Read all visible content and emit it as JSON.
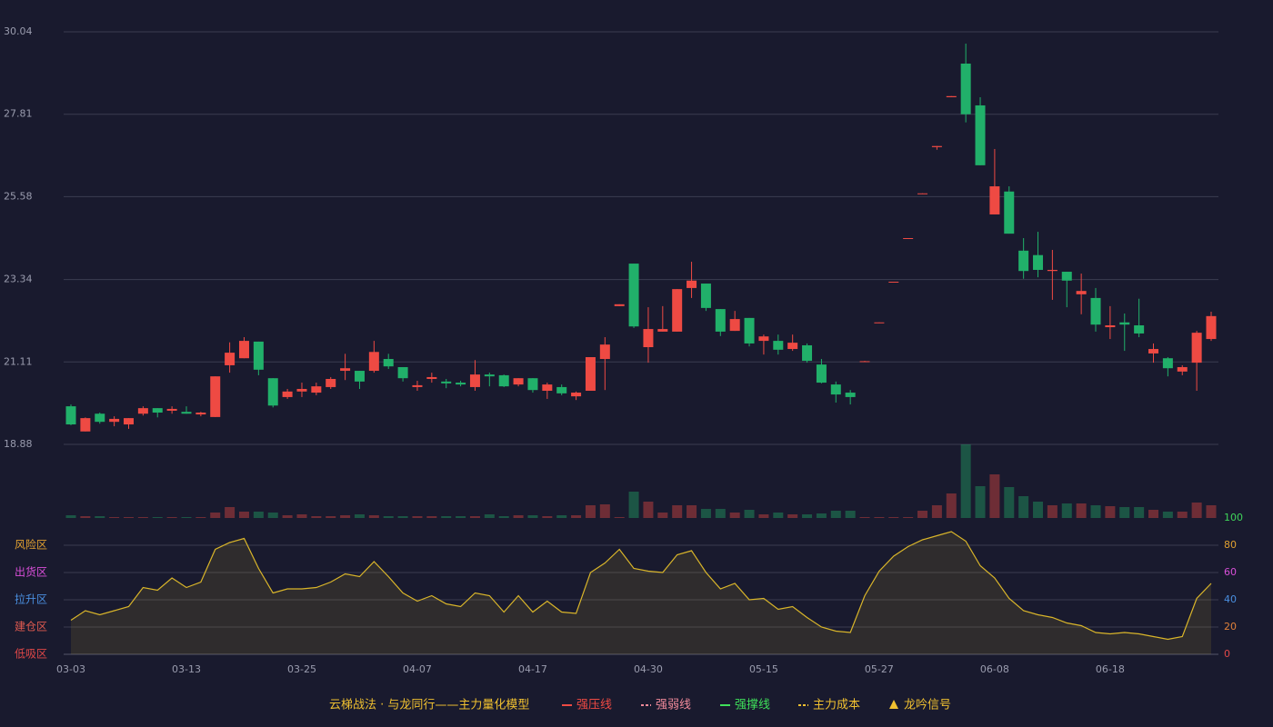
{
  "chart_data": {
    "type": "candlestick",
    "categories": [
      "03-03",
      null,
      null,
      null,
      null,
      null,
      null,
      null,
      "03-13",
      null,
      null,
      null,
      null,
      null,
      null,
      null,
      "03-25",
      null,
      null,
      null,
      null,
      null,
      null,
      null,
      "04-07",
      null,
      null,
      null,
      null,
      null,
      null,
      null,
      "04-17",
      null,
      null,
      null,
      null,
      null,
      null,
      null,
      "04-30",
      null,
      null,
      null,
      null,
      null,
      null,
      null,
      "05-15",
      null,
      null,
      null,
      null,
      null,
      null,
      null,
      "05-27",
      null,
      null,
      null,
      null,
      null,
      null,
      null,
      "06-08",
      null,
      null,
      null,
      null,
      null,
      null,
      null,
      "06-18",
      null,
      null,
      null,
      null,
      null,
      null,
      null
    ],
    "open": [
      19.91,
      19.23,
      19.71,
      19.49,
      19.42,
      19.71,
      19.86,
      19.79,
      19.76,
      19.69,
      19.62,
      21.02,
      21.21,
      21.66,
      20.67,
      20.16,
      20.31,
      20.28,
      20.43,
      20.87,
      20.87,
      20.87,
      21.19,
      20.97,
      20.43,
      20.65,
      20.58,
      20.55,
      20.43,
      20.77,
      20.75,
      20.5,
      20.67,
      20.33,
      20.43,
      20.18,
      20.33,
      21.19,
      22.62,
      23.77,
      21.51,
      21.93,
      21.93,
      23.11,
      23.23,
      22.54,
      21.95,
      22.3,
      21.68,
      21.68,
      21.46,
      21.56,
      21.04,
      20.5,
      20.28,
      21.11,
      22.16,
      23.26,
      24.44,
      25.65,
      26.92,
      28.27,
      29.18,
      28.05,
      25.1,
      25.72,
      24.12,
      24.0,
      23.57,
      23.55,
      22.94,
      22.84,
      22.05,
      22.18,
      22.1,
      21.34,
      21.21,
      20.85,
      21.09,
      21.73
    ],
    "high": [
      19.96,
      19.61,
      19.74,
      19.64,
      19.59,
      19.91,
      19.86,
      19.91,
      19.91,
      19.76,
      20.72,
      21.64,
      21.78,
      21.66,
      20.67,
      20.38,
      20.55,
      20.55,
      20.7,
      21.33,
      20.87,
      21.68,
      21.33,
      20.97,
      20.6,
      20.82,
      20.65,
      20.6,
      21.16,
      20.82,
      20.77,
      20.67,
      20.67,
      20.55,
      20.5,
      20.31,
      21.24,
      21.78,
      22.67,
      23.77,
      22.59,
      22.62,
      23.08,
      23.82,
      23.23,
      22.54,
      22.49,
      22.3,
      21.85,
      21.85,
      21.85,
      21.61,
      21.19,
      20.58,
      20.35,
      21.14,
      22.18,
      23.28,
      24.46,
      25.67,
      26.95,
      28.3,
      29.72,
      28.27,
      26.87,
      25.86,
      24.46,
      24.63,
      24.14,
      23.55,
      23.5,
      23.11,
      22.62,
      22.42,
      22.82,
      21.61,
      21.24,
      21.02,
      21.95,
      22.47
    ],
    "low": [
      19.4,
      19.23,
      19.44,
      19.37,
      19.3,
      19.66,
      19.61,
      19.71,
      19.71,
      19.64,
      19.62,
      20.82,
      21.21,
      20.75,
      19.88,
      20.11,
      20.16,
      20.21,
      20.38,
      20.62,
      20.38,
      20.82,
      20.92,
      20.58,
      20.33,
      20.55,
      20.4,
      20.45,
      20.33,
      20.45,
      20.43,
      20.45,
      20.28,
      20.11,
      20.21,
      20.08,
      20.33,
      20.35,
      22.62,
      22.03,
      21.09,
      21.93,
      21.93,
      22.84,
      22.49,
      21.81,
      21.95,
      21.53,
      21.31,
      21.31,
      21.41,
      21.09,
      20.53,
      20.01,
      19.96,
      21.11,
      22.16,
      23.26,
      24.44,
      25.65,
      26.85,
      28.27,
      27.59,
      26.43,
      25.1,
      24.58,
      23.36,
      23.4,
      22.79,
      22.59,
      22.4,
      21.93,
      21.73,
      21.41,
      21.78,
      21.09,
      20.72,
      20.75,
      20.33,
      21.68
    ],
    "close": [
      19.42,
      19.59,
      19.49,
      19.57,
      19.59,
      19.86,
      19.74,
      19.84,
      19.71,
      19.74,
      20.72,
      21.36,
      21.68,
      20.9,
      19.93,
      20.31,
      20.38,
      20.45,
      20.65,
      20.94,
      20.58,
      21.38,
      20.99,
      20.67,
      20.48,
      20.7,
      20.53,
      20.5,
      20.77,
      20.72,
      20.45,
      20.67,
      20.35,
      20.5,
      20.26,
      20.28,
      21.24,
      21.58,
      22.67,
      22.07,
      22.0,
      22.0,
      23.08,
      23.31,
      22.57,
      21.93,
      22.27,
      21.61,
      21.8,
      21.44,
      21.63,
      21.14,
      20.55,
      20.23,
      20.16,
      21.13,
      22.18,
      23.28,
      24.46,
      25.67,
      26.95,
      28.3,
      27.81,
      26.43,
      25.86,
      24.58,
      23.57,
      23.6,
      23.6,
      23.31,
      23.03,
      22.12,
      22.1,
      22.12,
      21.88,
      21.46,
      20.94,
      20.97,
      21.9,
      22.35
    ],
    "volume": [
      3,
      2,
      2,
      1,
      1,
      1,
      1,
      1,
      1,
      1,
      6,
      12,
      7,
      7,
      6,
      3,
      4,
      2,
      2,
      3,
      4,
      3,
      2,
      2,
      2,
      2,
      2,
      2,
      2,
      4,
      2,
      3,
      3,
      2,
      3,
      3,
      14,
      15,
      1,
      29,
      18,
      6,
      14,
      14,
      10,
      10,
      6,
      9,
      4,
      6,
      4,
      4,
      5,
      8,
      8,
      1,
      1,
      1,
      1,
      8,
      14,
      27,
      81,
      35,
      48,
      34,
      24,
      18,
      14,
      16,
      16,
      14,
      13,
      12,
      12,
      9,
      7,
      7,
      17,
      14
    ],
    "ylim": [
      18.88,
      30.04
    ],
    "yticks": [
      30.04,
      27.81,
      25.58,
      23.34,
      21.11,
      18.88
    ],
    "vlim": [
      0,
      81
    ],
    "up_color": "#ee4a43",
    "down_color": "#21b06a",
    "grid": true,
    "indicator": {
      "color": "#d9b52a",
      "values": [
        25,
        32,
        29,
        32,
        35,
        49,
        47,
        56,
        49,
        53,
        77,
        82,
        85,
        63,
        45,
        48,
        48,
        49,
        53,
        59,
        57,
        68,
        57,
        45,
        39,
        43,
        37,
        35,
        45,
        43,
        31,
        43,
        31,
        39,
        31,
        30,
        60,
        67,
        77,
        63,
        61,
        60,
        73,
        76,
        60,
        48,
        52,
        40,
        41,
        33,
        35,
        27,
        20,
        17,
        16,
        43,
        61,
        72,
        79,
        84,
        87,
        90,
        83,
        65,
        56,
        41,
        32,
        29,
        27,
        23,
        21,
        16,
        15,
        16,
        15,
        13,
        11,
        13,
        41,
        52
      ],
      "ylim": [
        0,
        100
      ],
      "yticks": [
        100,
        80,
        60,
        40,
        20,
        0
      ],
      "ytick_colors": [
        "#3fd45a",
        "#e0a030",
        "#d84fd8",
        "#4a8fe0",
        "#e0803a",
        "#e04848"
      ],
      "zones": [
        {
          "label": "风险区",
          "value": 80,
          "color": "#e0a030"
        },
        {
          "label": "出货区",
          "value": 60,
          "color": "#d84fd8"
        },
        {
          "label": "拉升区",
          "value": 40,
          "color": "#4a8fe0"
        },
        {
          "label": "建仓区",
          "value": 20,
          "color": "#e05a50"
        },
        {
          "label": "低吸区",
          "value": 0,
          "color": "#e04848"
        }
      ]
    },
    "legend": {
      "title": "云梯战法 · 与龙同行——主力量化模型",
      "items": [
        {
          "name": "强压线",
          "color": "#ee4a43",
          "style": "solid"
        },
        {
          "name": "强弱线",
          "color": "#f08a9a",
          "style": "dashed"
        },
        {
          "name": "强撑线",
          "color": "#3fe05a",
          "style": "solid"
        },
        {
          "name": "主力成本",
          "color": "#f0c030",
          "style": "dashed"
        },
        {
          "name": "龙吟信号",
          "color": "#f0c030",
          "style": "triangle"
        }
      ]
    }
  }
}
